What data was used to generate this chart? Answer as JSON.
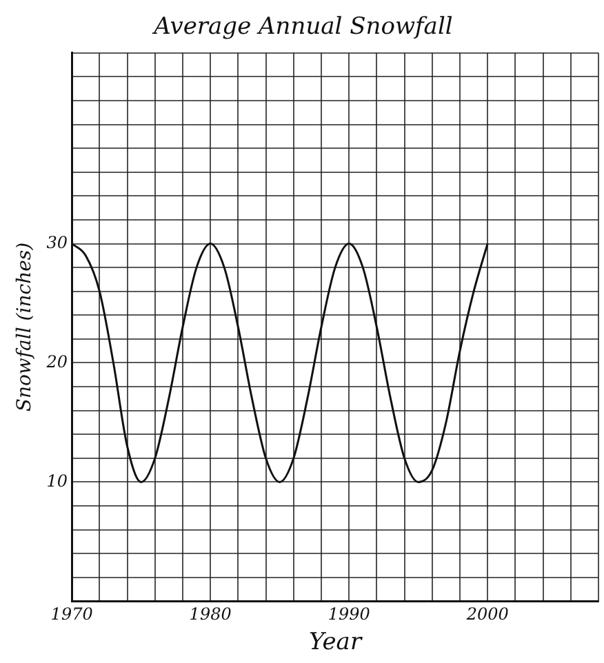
{
  "chart_data": {
    "type": "line",
    "title": "Average Annual Snowfall",
    "xlabel": "Year",
    "ylabel": "Snowfall (inches)",
    "x": [
      1970,
      1971,
      1972,
      1973,
      1974,
      1975,
      1976,
      1977,
      1978,
      1979,
      1980,
      1981,
      1982,
      1983,
      1984,
      1985,
      1986,
      1987,
      1988,
      1989,
      1990,
      1991,
      1992,
      1993,
      1994,
      1995,
      1996,
      1997,
      1998,
      1999,
      2000
    ],
    "series": [
      {
        "color": "#111111",
        "values": [
          30,
          29,
          26,
          20,
          13,
          10,
          12,
          17,
          23,
          28,
          30,
          28,
          23,
          17,
          12,
          10,
          12,
          17,
          23,
          28,
          30,
          28,
          23,
          17,
          12,
          10,
          11,
          15,
          21,
          26,
          30
        ]
      }
    ],
    "xlim": [
      1970,
      2008
    ],
    "xticks": [
      1970,
      {
        "value": 1972,
        "label": null
      },
      {
        "value": 1974,
        "label": null
      },
      {
        "value": 1976,
        "label": null
      },
      {
        "value": 1978,
        "label": null
      },
      1980,
      {
        "value": 1982,
        "label": null
      },
      {
        "value": 1984,
        "label": null
      },
      {
        "value": 1986,
        "label": null
      },
      {
        "value": 1988,
        "label": null
      },
      1990,
      {
        "value": 1992,
        "label": null
      },
      {
        "value": 1994,
        "label": null
      },
      {
        "value": 1996,
        "label": null
      },
      {
        "value": 1998,
        "label": null
      },
      2000,
      {
        "value": 2002,
        "label": null
      },
      {
        "value": 2004,
        "label": null
      },
      {
        "value": 2006,
        "label": null
      },
      {
        "value": 2008,
        "label": null
      }
    ],
    "ylim": [
      0,
      46
    ],
    "yticks": [
      {
        "value": 0,
        "label": null
      },
      {
        "value": 2,
        "label": null
      },
      {
        "value": 4,
        "label": null
      },
      {
        "value": 6,
        "label": null
      },
      {
        "value": 8,
        "label": null
      },
      10,
      {
        "value": 12,
        "label": null
      },
      {
        "value": 14,
        "label": null
      },
      {
        "value": 16,
        "label": null
      },
      {
        "value": 18,
        "label": null
      },
      20,
      {
        "value": 22,
        "label": null
      },
      {
        "value": 24,
        "label": null
      },
      {
        "value": 26,
        "label": null
      },
      {
        "value": 28,
        "label": null
      },
      30,
      {
        "value": 32,
        "label": null
      },
      {
        "value": 34,
        "label": null
      },
      {
        "value": 36,
        "label": null
      },
      {
        "value": 38,
        "label": null
      },
      {
        "value": 40,
        "label": null
      },
      {
        "value": 42,
        "label": null
      },
      {
        "value": 44,
        "label": null
      },
      {
        "value": 46,
        "label": null
      }
    ],
    "grid": true,
    "marker": "none",
    "line_style": "solid"
  }
}
